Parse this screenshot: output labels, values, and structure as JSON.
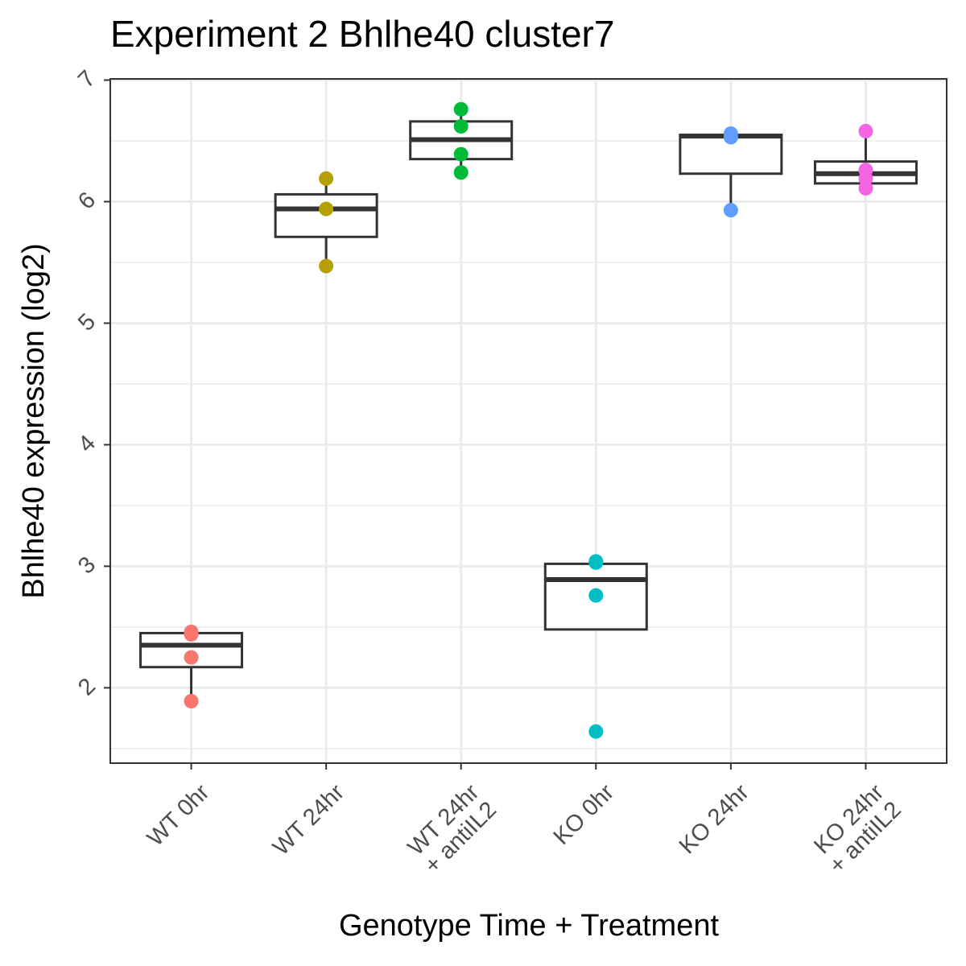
{
  "chart_data": {
    "type": "box",
    "title": "Experiment 2 Bhlhe40 cluster7",
    "x_label": "Genotype Time + Treatment",
    "y_label": "Bhlhe40 expression (log2)",
    "categories": [
      "WT 0hr",
      "WT 24hr",
      "WT 24hr\n+ antiIL2",
      "KO 0hr",
      "KO 24hr",
      "KO 24hr\n+ antiIL2"
    ],
    "groups": [
      {
        "color": "#F8766D",
        "min": 1.89,
        "q1": 2.17,
        "median": 2.35,
        "q3": 2.45,
        "max": 2.46,
        "points": [
          2.46,
          2.44,
          2.25,
          1.89
        ]
      },
      {
        "color": "#B79F00",
        "min": 5.47,
        "q1": 5.71,
        "median": 5.94,
        "q3": 6.06,
        "max": 6.19,
        "points": [
          6.19,
          5.94,
          5.47
        ]
      },
      {
        "color": "#00BA38",
        "min": 6.24,
        "q1": 6.35,
        "median": 6.51,
        "q3": 6.66,
        "max": 6.76,
        "points": [
          6.76,
          6.62,
          6.39,
          6.24
        ]
      },
      {
        "color": "#00BFC4",
        "min": 2.48,
        "q1": 2.48,
        "median": 2.89,
        "q3": 3.02,
        "max": 3.04,
        "points": [
          3.04,
          3.03,
          2.76,
          1.64
        ]
      },
      {
        "color": "#619CFF",
        "min": 5.93,
        "q1": 6.23,
        "median": 6.54,
        "q3": 6.55,
        "max": 6.56,
        "points": [
          6.56,
          6.53,
          5.93
        ]
      },
      {
        "color": "#F564E3",
        "min": 6.11,
        "q1": 6.15,
        "median": 6.23,
        "q3": 6.33,
        "max": 6.58,
        "points": [
          6.58,
          6.26,
          6.19,
          6.11
        ]
      }
    ],
    "ylim": [
      1.38,
      7.01
    ],
    "yticks": [
      2,
      3,
      4,
      5,
      6,
      7
    ],
    "minor_grid": [
      1.5,
      2.5,
      3.5,
      4.5,
      5.5,
      6.5
    ],
    "grid": true
  }
}
